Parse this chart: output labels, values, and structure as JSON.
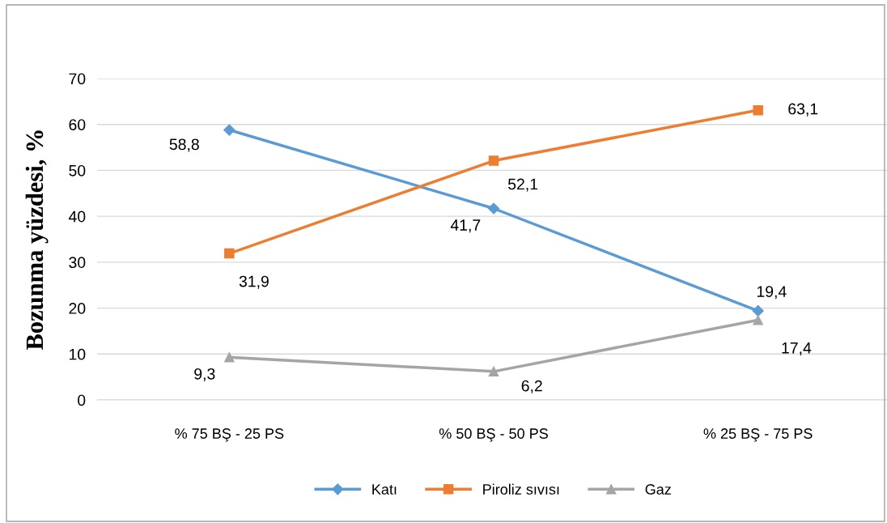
{
  "chart_data": {
    "type": "line",
    "ylabel": "Bozunma yüzdesi, %",
    "categories": [
      "% 75 BŞ - 25 PS",
      "% 50 BŞ - 50 PS",
      "% 25 BŞ - 75 PS"
    ],
    "series": [
      {
        "name": "Katı",
        "color": "#5b9bd5",
        "marker": "diamond",
        "values": [
          58.8,
          41.7,
          19.4
        ],
        "value_labels": [
          "58,8",
          "41,7",
          "19,4"
        ]
      },
      {
        "name": "Piroliz sıvısı",
        "color": "#ed7d31",
        "marker": "square",
        "values": [
          31.9,
          52.1,
          63.1
        ],
        "value_labels": [
          "31,9",
          "52,1",
          "63,1"
        ]
      },
      {
        "name": "Gaz",
        "color": "#a5a5a5",
        "marker": "triangle",
        "values": [
          9.3,
          6.2,
          17.4
        ],
        "value_labels": [
          "9,3",
          "6,2",
          "17,4"
        ]
      }
    ],
    "ylim": [
      0,
      70
    ],
    "yticks": [
      0,
      10,
      20,
      30,
      40,
      50,
      60,
      70
    ],
    "grid": "y",
    "legend": "bottom",
    "line_style": "solid"
  }
}
